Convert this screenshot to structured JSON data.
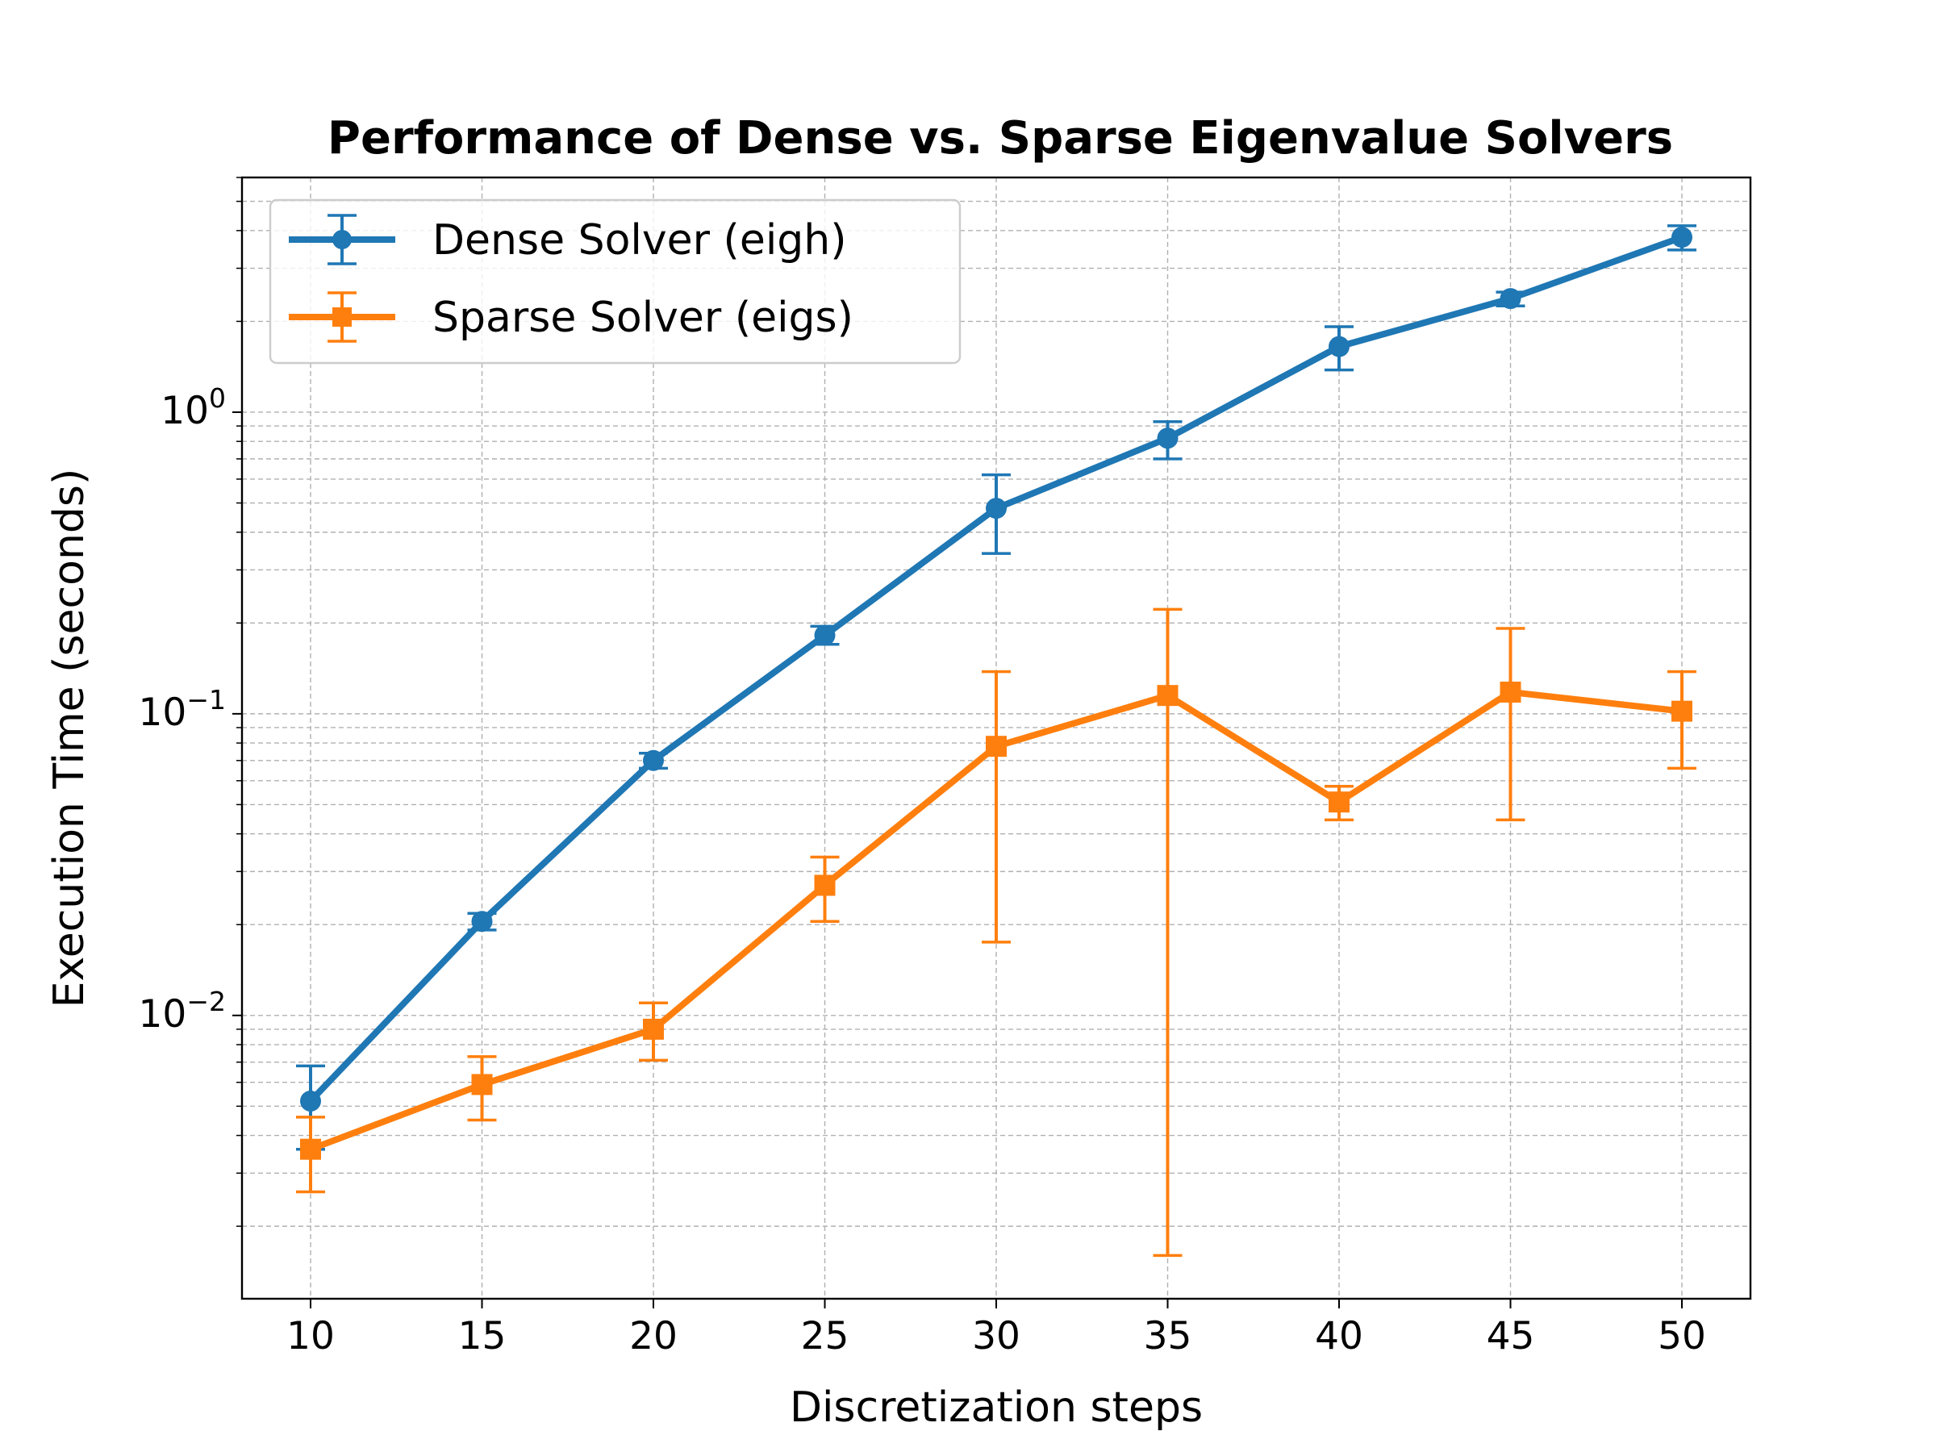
{
  "chart_data": {
    "type": "line",
    "title": "Performance of Dense vs. Sparse Eigenvalue Solvers",
    "xlabel": "Discretization steps",
    "ylabel": "Execution Time (seconds)",
    "yscale": "log",
    "xlim": [
      8,
      52
    ],
    "ylim": [
      0.00115,
      6.0
    ],
    "grid": true,
    "legend_position": "upper-left",
    "x_ticks": [
      "10",
      "15",
      "20",
      "25",
      "30",
      "35",
      "40",
      "45",
      "50"
    ],
    "y_ticks": [
      {
        "value": 0.01,
        "base": "10",
        "exp": "−2"
      },
      {
        "value": 0.1,
        "base": "10",
        "exp": "−1"
      },
      {
        "value": 1,
        "base": "10",
        "exp": "0"
      }
    ],
    "x": [
      10,
      15,
      20,
      25,
      30,
      35,
      40,
      45,
      50
    ],
    "series": [
      {
        "name": "Dense Solver (eigh)",
        "color": "#1f77b4",
        "marker": "circle",
        "values": [
          0.0052,
          0.0205,
          0.07,
          0.182,
          0.48,
          0.82,
          1.65,
          2.38,
          3.8
        ],
        "err_low": [
          0.0036,
          0.0192,
          0.066,
          0.17,
          0.34,
          0.7,
          1.38,
          2.25,
          3.45
        ],
        "err_high": [
          0.0068,
          0.0218,
          0.074,
          0.195,
          0.62,
          0.93,
          1.92,
          2.5,
          4.15
        ]
      },
      {
        "name": "Sparse Solver (eigs)",
        "color": "#ff7f0e",
        "marker": "square",
        "values": [
          0.0036,
          0.0059,
          0.009,
          0.027,
          0.078,
          0.115,
          0.051,
          0.118,
          0.102
        ],
        "err_low": [
          0.0026,
          0.0045,
          0.0071,
          0.0205,
          0.0175,
          0.0016,
          0.0445,
          0.0445,
          0.066
        ],
        "err_high": [
          0.0046,
          0.0073,
          0.011,
          0.0335,
          0.138,
          0.222,
          0.0575,
          0.192,
          0.138
        ]
      }
    ]
  }
}
